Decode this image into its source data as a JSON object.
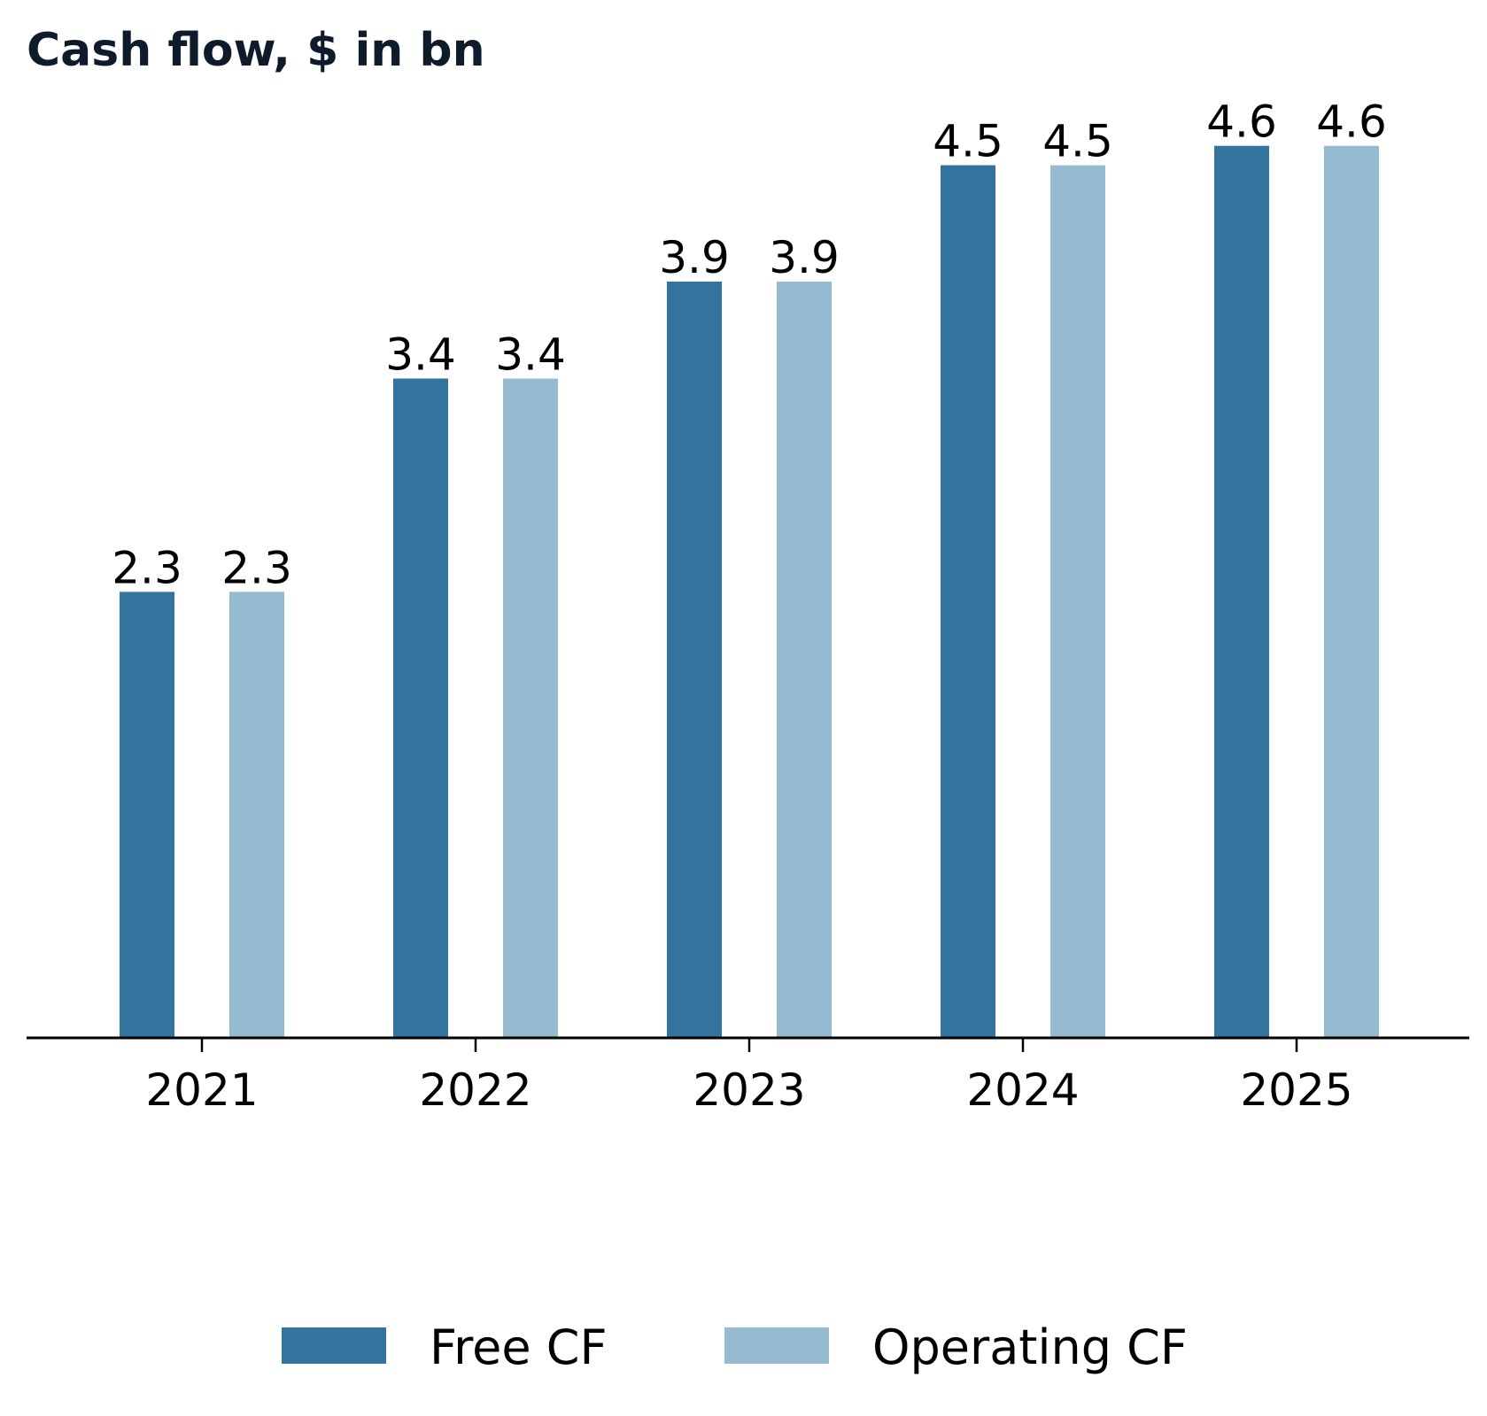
{
  "chart_data": {
    "type": "bar",
    "title": "Cash flow, $ in bn",
    "xlabel": "",
    "ylabel": "",
    "categories": [
      "2021",
      "2022",
      "2023",
      "2024",
      "2025"
    ],
    "series": [
      {
        "name": "Free CF",
        "values": [
          2.3,
          3.4,
          3.9,
          4.5,
          4.6
        ],
        "color": "#33749e"
      },
      {
        "name": "Operating CF",
        "values": [
          2.3,
          3.4,
          3.9,
          4.5,
          4.6
        ],
        "color": "#95bbd0"
      }
    ],
    "data_labels": [
      [
        "2.3",
        "3.4",
        "3.9",
        "4.5",
        "4.6"
      ],
      [
        "2.3",
        "3.4",
        "3.9",
        "4.5",
        "4.6"
      ]
    ],
    "ylim": [
      0,
      4.9
    ],
    "grid": false,
    "legend_position": "bottom-center",
    "axis_color": "#000000",
    "title_color": "#0d1b2a"
  }
}
